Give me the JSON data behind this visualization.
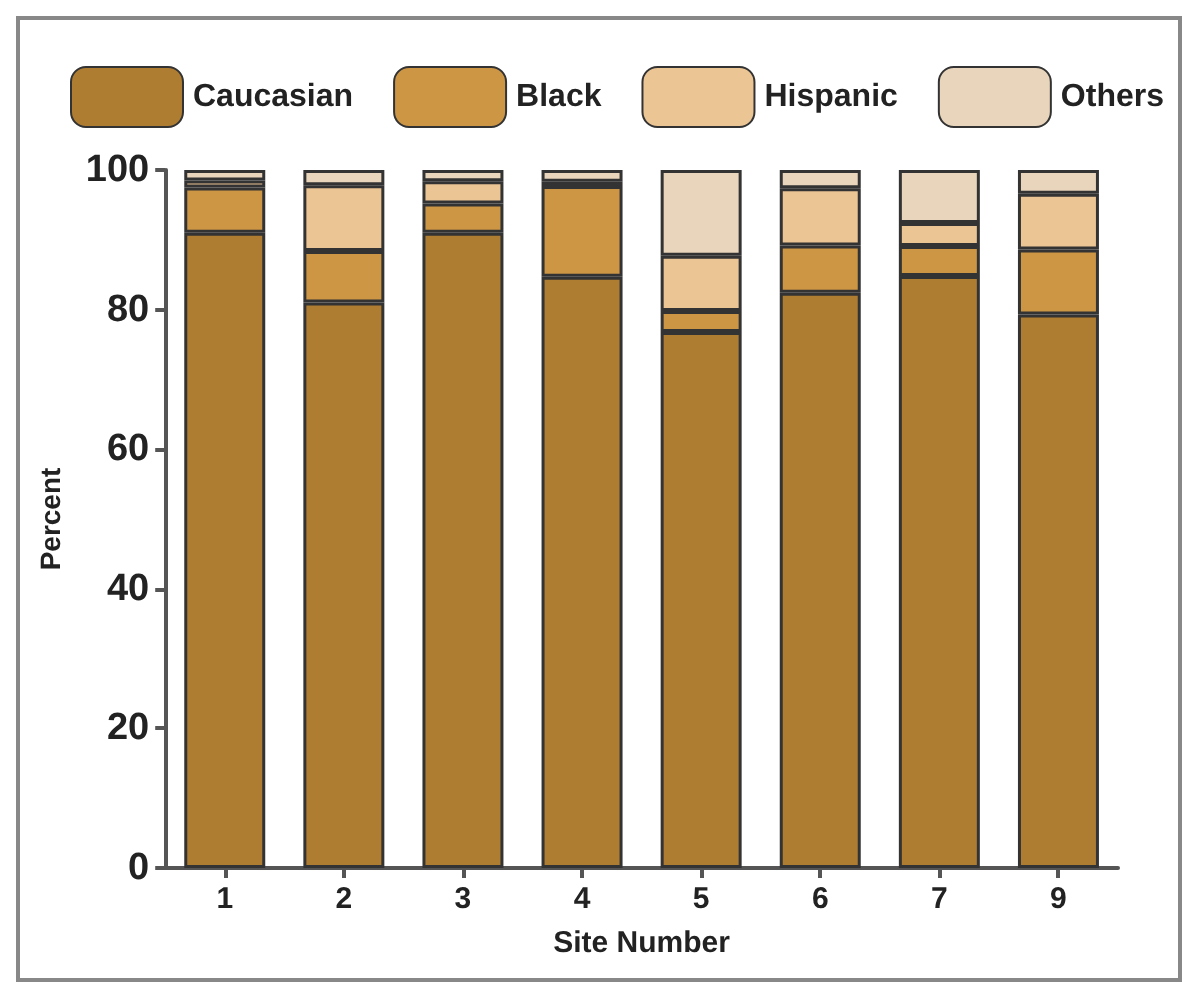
{
  "chart_data": {
    "type": "bar",
    "stacked": true,
    "xlabel": "Site Number",
    "ylabel": "Percent",
    "categories": [
      "1",
      "2",
      "3",
      "4",
      "5",
      "6",
      "7",
      "9"
    ],
    "series": [
      {
        "name": "Caucasian",
        "color": "#ae7d32",
        "values": [
          91,
          81,
          91,
          84.7,
          76.8,
          82.4,
          84.8,
          79.3
        ]
      },
      {
        "name": "Black",
        "color": "#cd9645",
        "values": [
          6.5,
          7.4,
          4.2,
          13,
          3,
          6.8,
          4.3,
          9.3
        ]
      },
      {
        "name": "Hispanic",
        "color": "#ecc594",
        "values": [
          1,
          9.4,
          3.2,
          0.6,
          7.9,
          8.2,
          3.3,
          8
        ]
      },
      {
        "name": "Others",
        "color": "#e8d5bb",
        "values": [
          1.5,
          2.2,
          1.6,
          1.7,
          12.3,
          2.6,
          7.6,
          3.4
        ]
      }
    ],
    "ylim": [
      0,
      100
    ],
    "yticks": [
      0,
      20,
      40,
      60,
      80,
      100
    ],
    "grid": false,
    "legend": "top left"
  }
}
